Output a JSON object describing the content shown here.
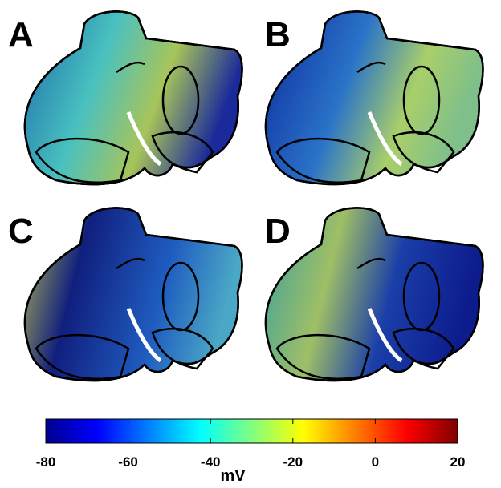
{
  "panels": [
    {
      "label": "A"
    },
    {
      "label": "B"
    },
    {
      "label": "C"
    },
    {
      "label": "D"
    }
  ],
  "colorbar": {
    "label": "mV",
    "lim": [
      -80,
      20
    ],
    "ticks": [
      -80,
      -60,
      -40,
      -20,
      0,
      20
    ],
    "colormap": "jet"
  }
}
